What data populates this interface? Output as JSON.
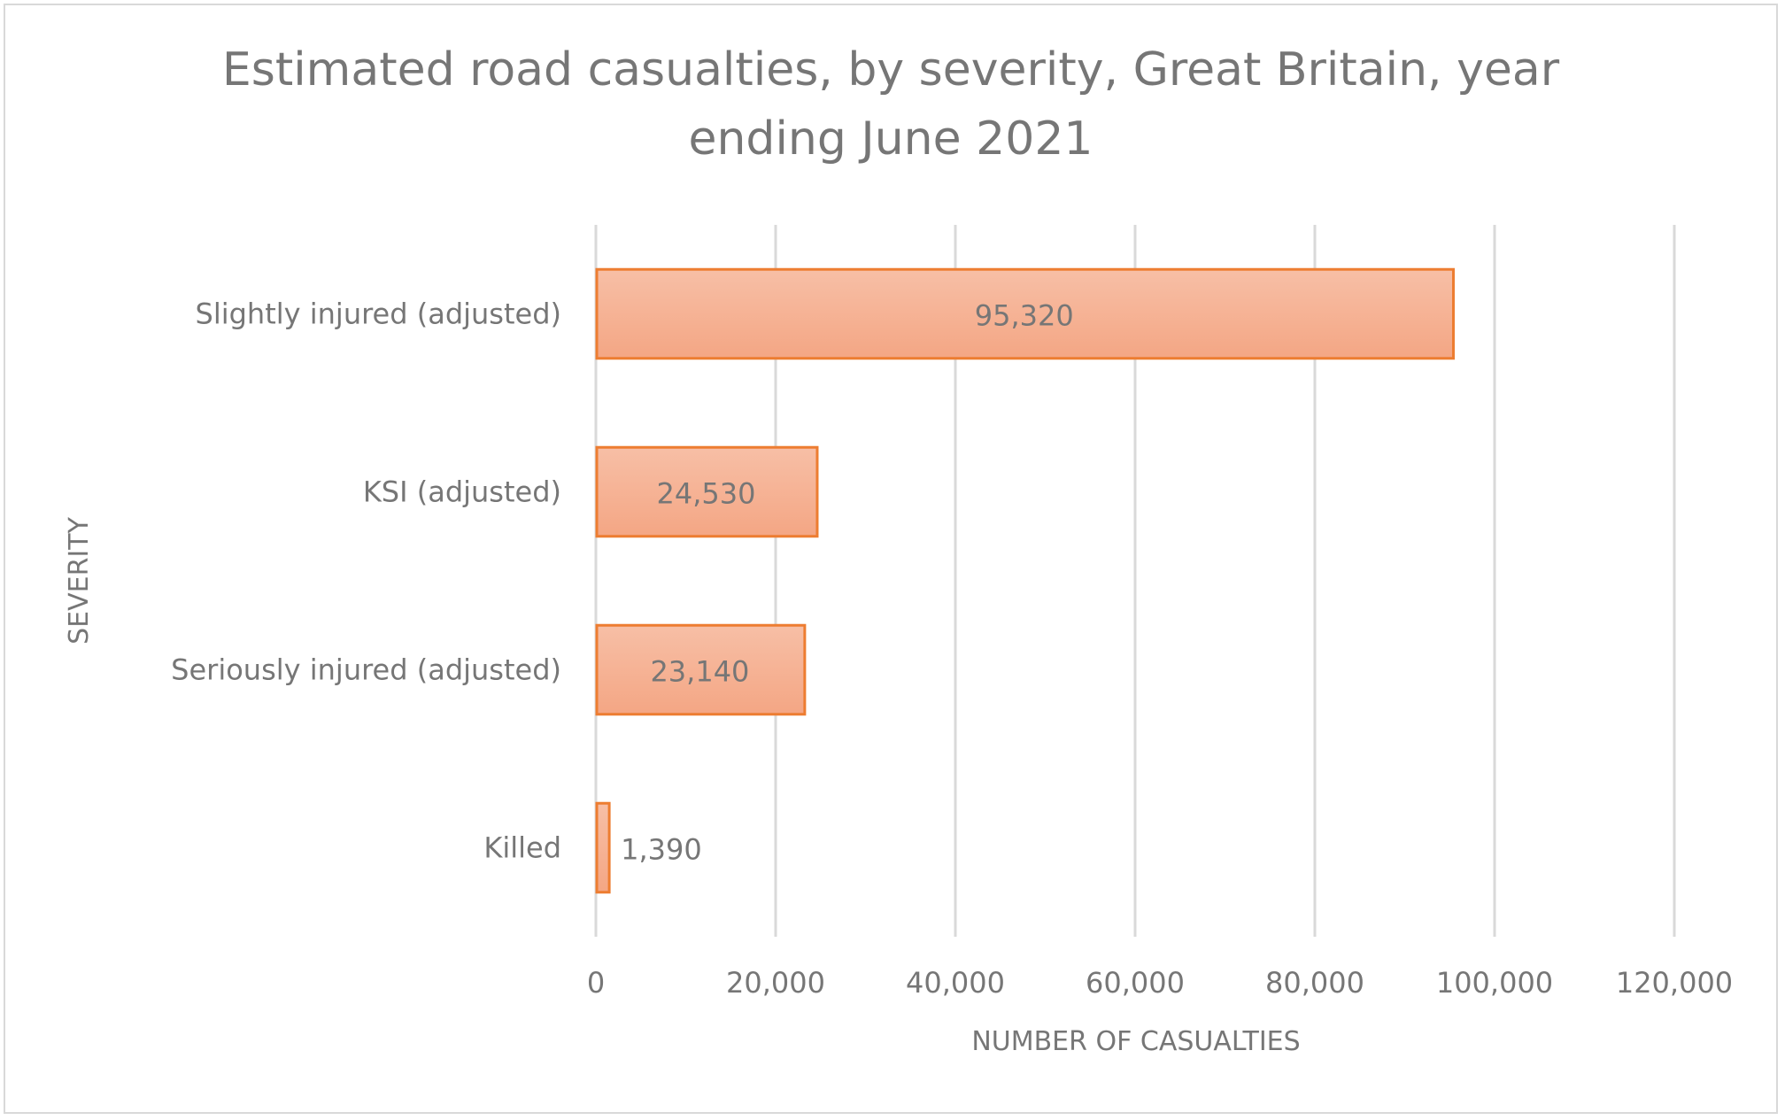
{
  "chart_data": {
    "type": "bar",
    "orientation": "horizontal",
    "title": "Estimated road casualties, by severity, Great Britain, year ending June 2021",
    "xlabel": "NUMBER OF CASUALTIES",
    "ylabel": "SEVERITY",
    "categories": [
      "Slightly injured (adjusted)",
      "KSI (adjusted)",
      "Seriously injured (adjusted)",
      "Killed"
    ],
    "values": [
      95320,
      24530,
      23140,
      1390
    ],
    "data_labels": [
      "95,320",
      "24,530",
      "23,140",
      "1,390"
    ],
    "xlim": [
      0,
      120000
    ],
    "xticks": [
      0,
      20000,
      40000,
      60000,
      80000,
      100000,
      120000
    ],
    "xtick_labels": [
      "0",
      "20,000",
      "40,000",
      "60,000",
      "80,000",
      "100,000",
      "120,000"
    ],
    "grid": "vertical",
    "legend": "none",
    "colors": {
      "bar_fill_top": "#f7bfa6",
      "bar_fill_bottom": "#f4a684",
      "bar_border": "#ed7d31",
      "grid": "#d9d9d9",
      "text": "#767676"
    }
  }
}
